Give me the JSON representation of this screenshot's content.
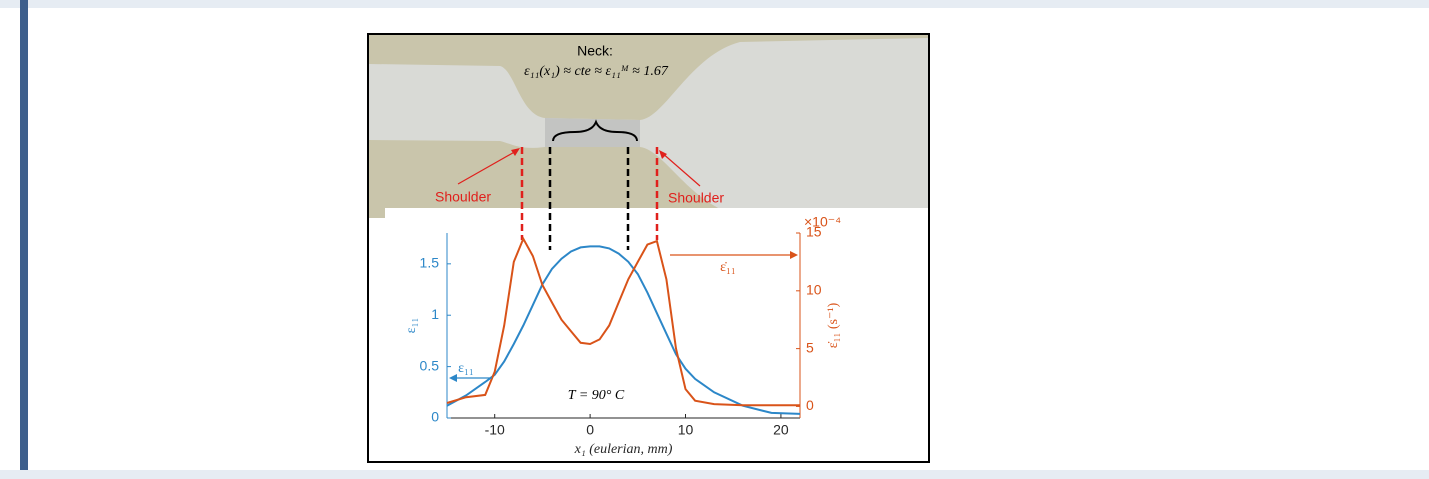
{
  "chart_data": {
    "type": "line",
    "xlabel": "x₁ (eulerian, mm)",
    "ylabel": "ε₁₁",
    "y2label": "ε̇₁₁ (s⁻¹)",
    "y2_scale_label": "×10⁻⁴",
    "annotations": {
      "neck": "Neck:",
      "neck_formula": "ε₁₁(x₁) ≈ cte ≈ ε₁₁ᴹ ≈ 1.67",
      "shoulder_left": "Shoulder",
      "shoulder_right": "Shoulder",
      "temperature": "T = 90° C",
      "rate_arrow": "ε̇₁₁",
      "strain_arrow": "ε₁₁"
    },
    "x": [
      -15,
      -13,
      -11,
      -10,
      -9,
      -8,
      -7,
      -6,
      -5,
      -4,
      -3,
      -2,
      -1,
      0,
      1,
      2,
      3,
      4,
      5,
      6,
      7,
      8,
      9,
      10,
      11,
      13,
      16,
      19,
      22
    ],
    "series": [
      {
        "name": "ε₁₁",
        "color": "#2c87c8",
        "axis": "y",
        "values": [
          0.12,
          0.22,
          0.35,
          0.42,
          0.55,
          0.72,
          0.9,
          1.1,
          1.3,
          1.45,
          1.55,
          1.62,
          1.66,
          1.67,
          1.67,
          1.65,
          1.6,
          1.52,
          1.4,
          1.22,
          1.02,
          0.82,
          0.62,
          0.48,
          0.38,
          0.25,
          0.12,
          0.05,
          0.04
        ]
      },
      {
        "name": "ε̇₁₁",
        "color": "#d95319",
        "axis": "y2",
        "values": [
          0.3,
          0.8,
          1.0,
          3,
          7,
          12.5,
          14.5,
          13,
          10.5,
          9,
          7.5,
          6.5,
          5.5,
          5.4,
          5.8,
          7,
          9,
          11,
          12.5,
          14,
          14.3,
          11,
          5,
          1.5,
          0.5,
          0.2,
          0.1,
          0.1,
          0.1
        ]
      }
    ],
    "xlim": [
      -15,
      22
    ],
    "xticks": [
      -10,
      0,
      10,
      20
    ],
    "ylim": [
      0,
      1.8
    ],
    "yticks": [
      0,
      0.5,
      1,
      1.5
    ],
    "y2lim": [
      -1,
      15
    ],
    "y2ticks": [
      0,
      5,
      10,
      15
    ]
  }
}
